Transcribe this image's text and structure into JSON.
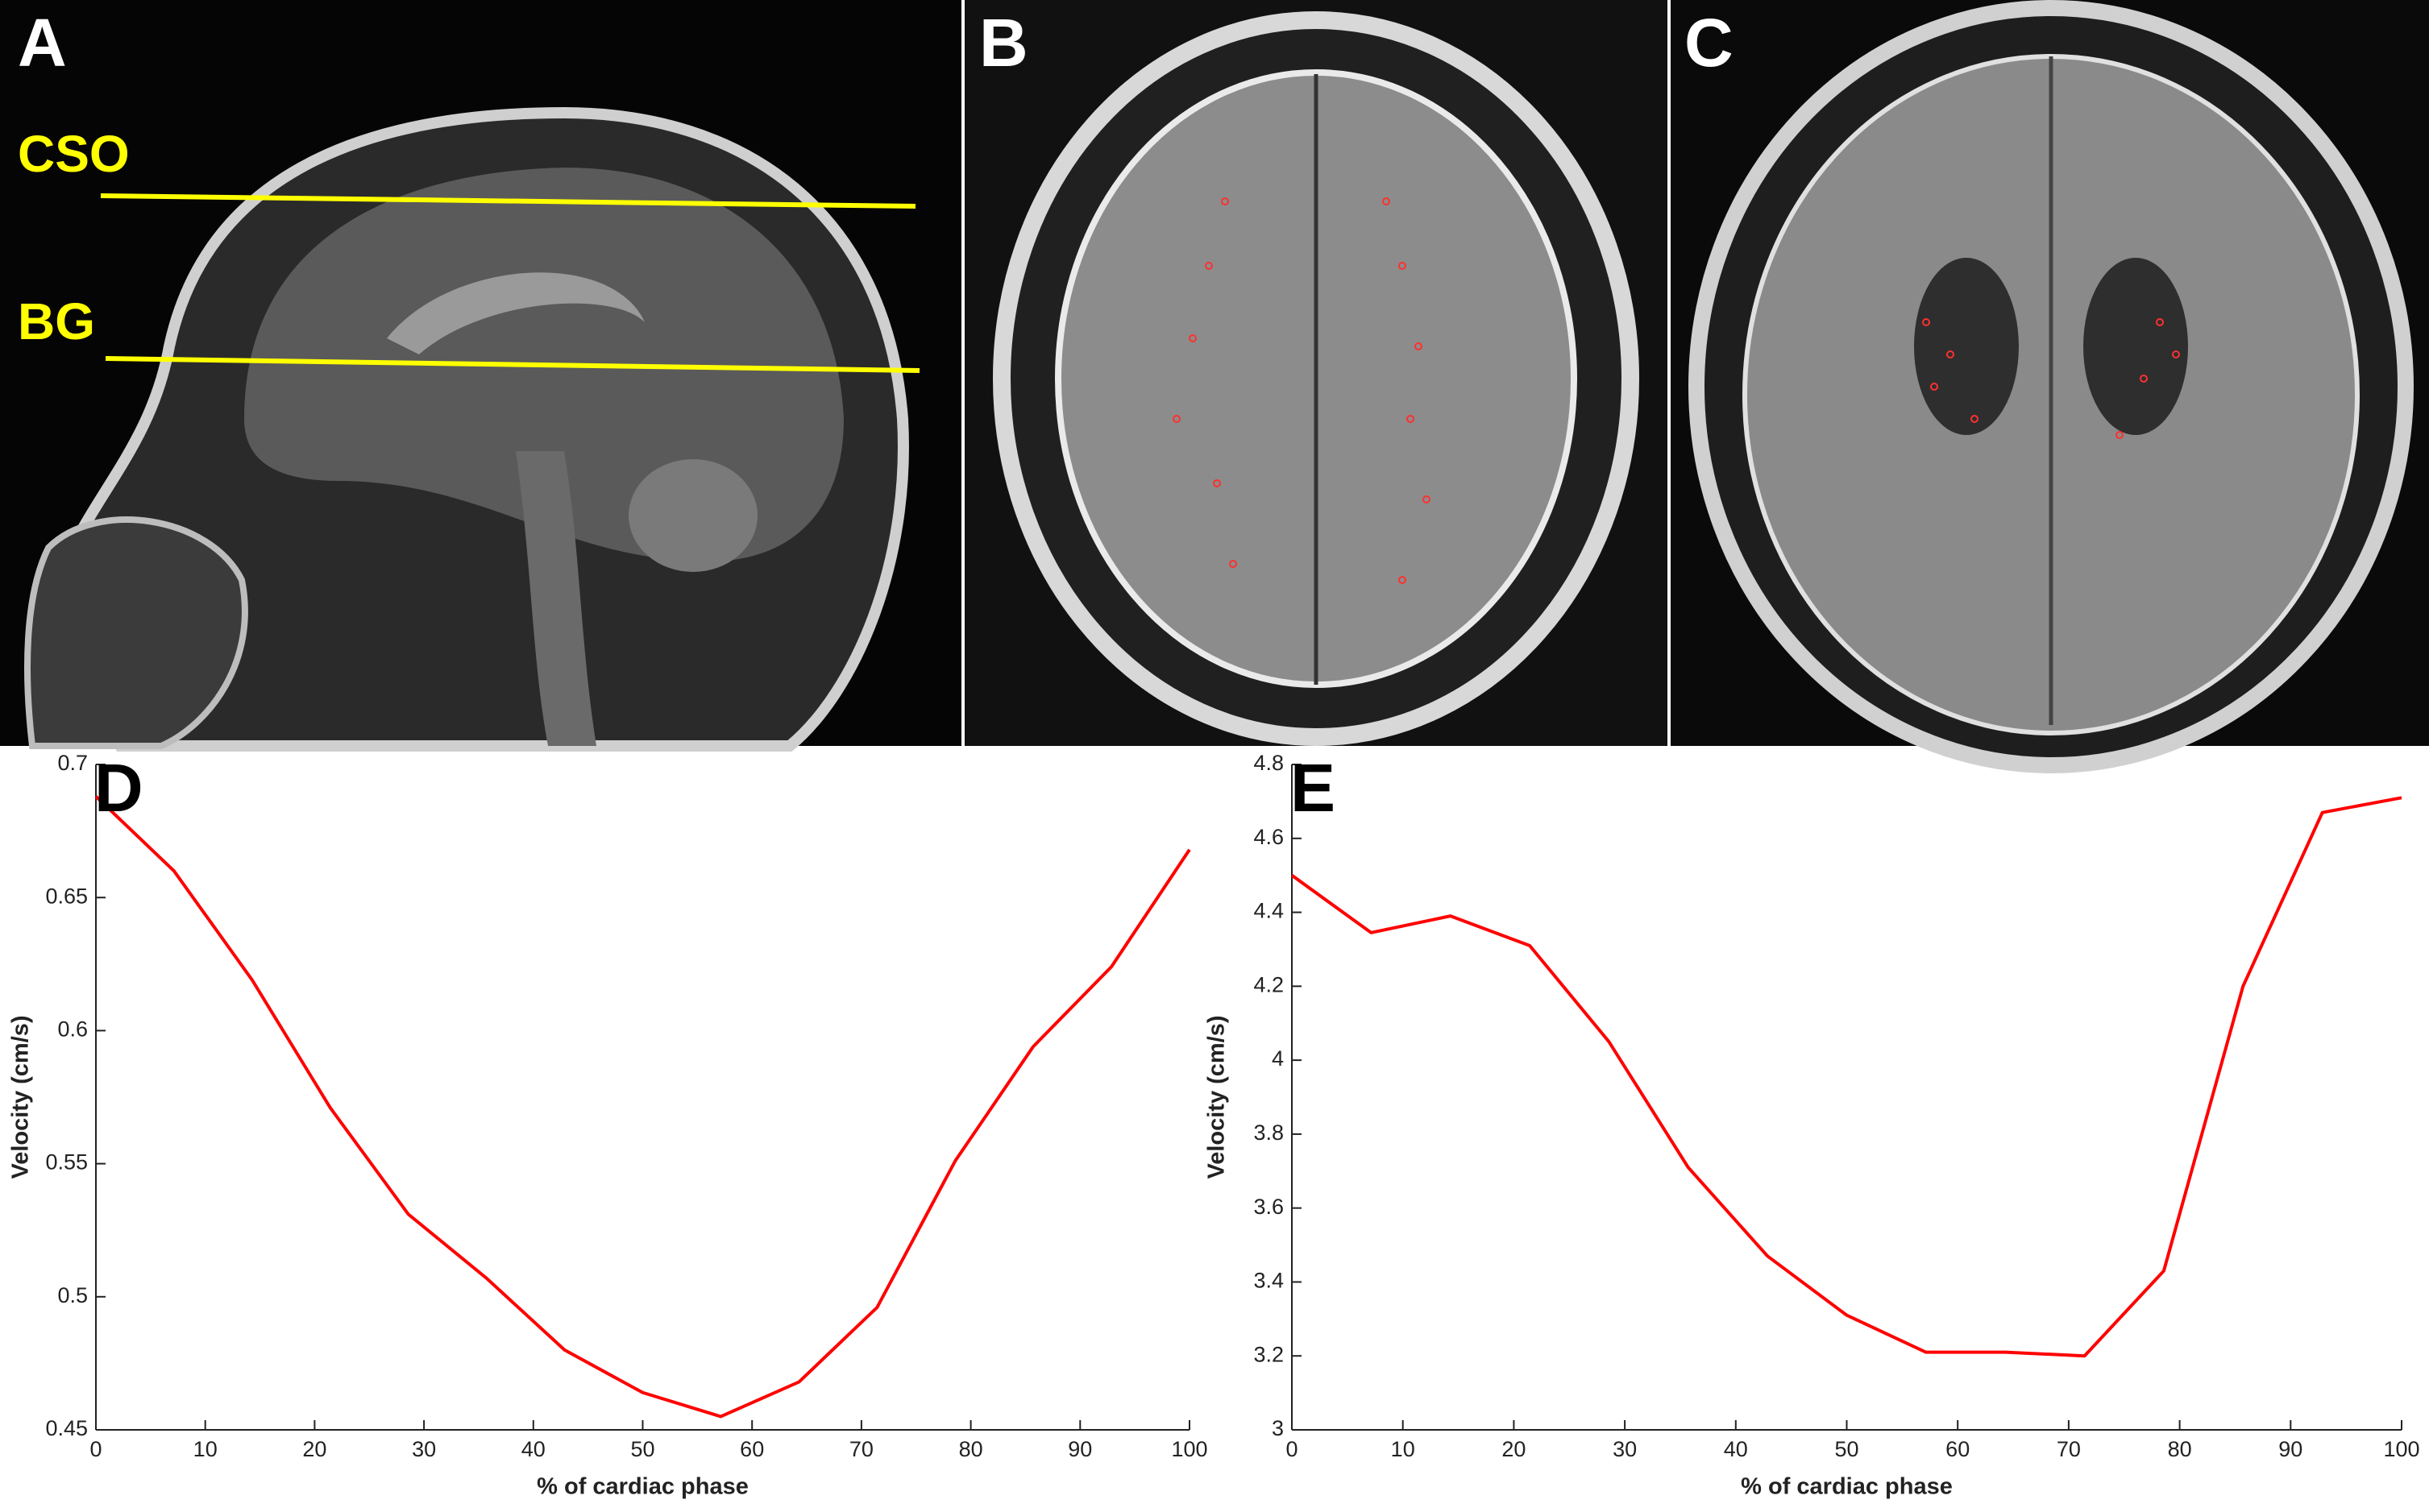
{
  "panels": [
    {
      "label": "A",
      "annotations": [
        "CSO",
        "BG"
      ]
    },
    {
      "label": "B"
    },
    {
      "label": "C"
    }
  ],
  "chart_data": [
    {
      "type": "line",
      "label": "D",
      "xlabel": "% of cardiac phase",
      "ylabel": "Velocity (cm/s)",
      "x": [
        0,
        7.14,
        14.29,
        21.43,
        28.57,
        35.71,
        42.86,
        50,
        57.14,
        64.29,
        71.43,
        78.57,
        85.71,
        92.86,
        100
      ],
      "values": [
        0.688,
        0.66,
        0.619,
        0.571,
        0.531,
        0.507,
        0.48,
        0.464,
        0.455,
        0.468,
        0.496,
        0.551,
        0.594,
        0.624,
        0.668
      ],
      "color": "#ff0000",
      "xlim": [
        0,
        100
      ],
      "xticks": [
        0,
        10,
        20,
        30,
        40,
        50,
        60,
        70,
        80,
        90,
        100
      ],
      "ylim": [
        0.45,
        0.7
      ],
      "yticks": [
        0.45,
        0.5,
        0.55,
        0.6,
        0.65,
        0.7
      ]
    },
    {
      "type": "line",
      "label": "E",
      "xlabel": "% of cardiac phase",
      "ylabel": "Velocity (cm/s)",
      "x": [
        0,
        7.14,
        14.29,
        21.43,
        28.57,
        35.71,
        42.86,
        50,
        57.14,
        64.29,
        71.43,
        78.57,
        85.71,
        92.86,
        100
      ],
      "values": [
        4.5,
        4.345,
        4.39,
        4.31,
        4.05,
        3.71,
        3.47,
        3.31,
        3.21,
        3.21,
        3.2,
        3.43,
        4.2,
        4.67,
        4.71
      ],
      "color": "#ff0000",
      "xlim": [
        0,
        100
      ],
      "xticks": [
        0,
        10,
        20,
        30,
        40,
        50,
        60,
        70,
        80,
        90,
        100
      ],
      "ylim": [
        3,
        4.8
      ],
      "yticks": [
        3,
        3.2,
        3.4,
        3.6,
        3.8,
        4,
        4.2,
        4.4,
        4.6,
        4.8
      ]
    }
  ]
}
